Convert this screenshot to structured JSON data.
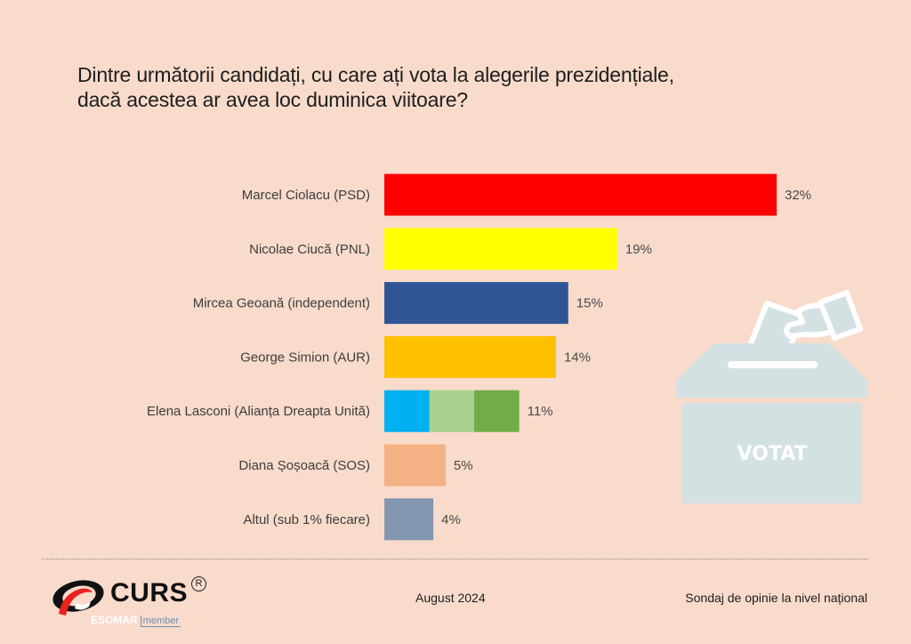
{
  "chart_data": {
    "type": "bar",
    "orientation": "horizontal",
    "title": "Dintre următorii candidați, cu care ați vota la alegerile prezidențiale, dacă acestea ar avea loc duminica viitoare?",
    "title_lines": [
      "Dintre următorii candidați, cu care ați vota la alegerile prezidențiale,",
      "dacă acestea ar avea loc duminica viitoare?"
    ],
    "xlabel": "",
    "ylabel": "",
    "xlim": [
      0,
      32
    ],
    "grid": false,
    "unit": "%",
    "categories": [
      "Marcel Ciolacu (PSD)",
      "Nicolae Ciucă (PNL)",
      "Mircea Geoană (independent)",
      "George Simion (AUR)",
      "Elena Lasconi (Alianța Dreapta Unită)",
      "Diana Șoșoacă (SOS)",
      "Altul (sub 1% fiecare)"
    ],
    "values": [
      32,
      19,
      15,
      14,
      11,
      5,
      4
    ],
    "value_labels": [
      "32%",
      "19%",
      "15%",
      "14%",
      "11%",
      "5%",
      "4%"
    ],
    "colors": [
      [
        "#FF0000"
      ],
      [
        "#FFFF00"
      ],
      [
        "#2F5597"
      ],
      [
        "#FFC000"
      ],
      [
        "#00B0F0",
        "#A9D18E",
        "#70AD47"
      ],
      [
        "#F4B183"
      ],
      [
        "#8497B0"
      ]
    ]
  },
  "illustration": {
    "icon": "ballot-box-icon",
    "label": "VOTAT",
    "color": "#D3E1E3"
  },
  "footer": {
    "brand": "CURS",
    "registered_mark": "R",
    "affiliation": "ESOMAR",
    "affiliation_tag": "member",
    "date": "August 2024",
    "note": "Sondaj de opinie la nivel național"
  },
  "background": "#F8DBCB"
}
